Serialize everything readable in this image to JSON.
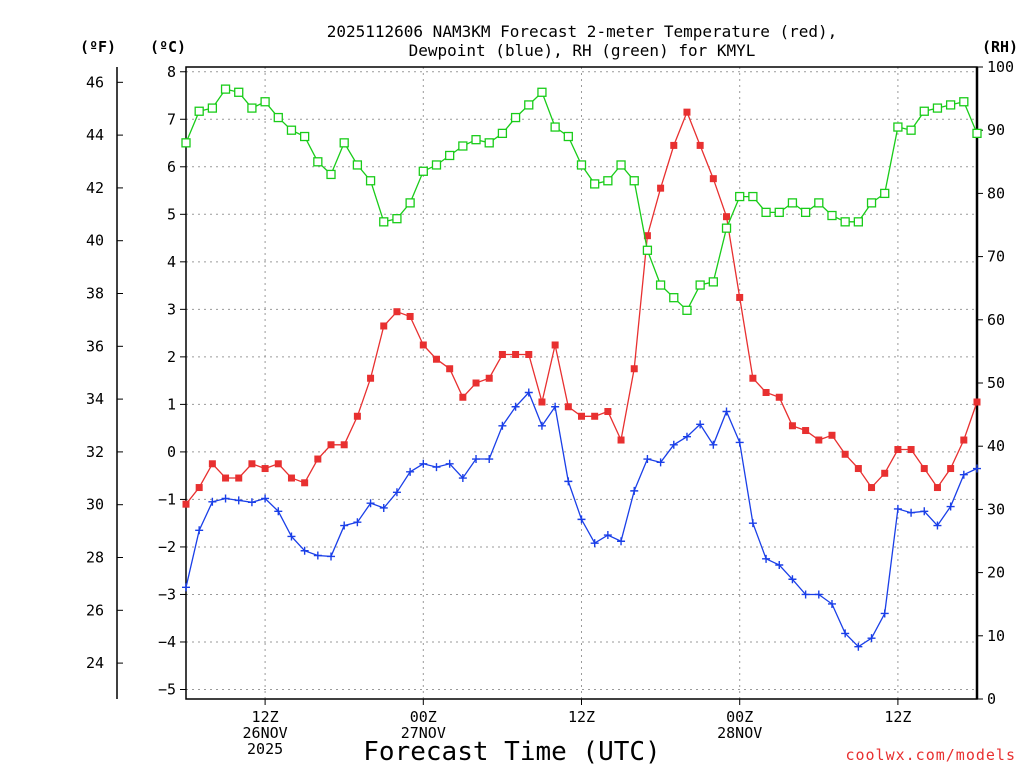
{
  "chart_data": {
    "type": "line",
    "title": [
      "2025112606 NAM3KM Forecast 2-meter Temperature (red),",
      "Dewpoint (blue), RH (green) for KMYL"
    ],
    "xlabel": "Forecast Time (UTC)",
    "credit": "coolwx.com/models",
    "unit_labels": {
      "fahrenheit": "(ºF)",
      "celsius": "(ºC)",
      "rh": "(RH)"
    },
    "x_range_hours": [
      0,
      60
    ],
    "x_ticks": [
      {
        "hour": 6,
        "lines": [
          "12Z",
          "26NOV",
          "2025"
        ]
      },
      {
        "hour": 18,
        "lines": [
          "00Z",
          "27NOV"
        ]
      },
      {
        "hour": 30,
        "lines": [
          "12Z"
        ]
      },
      {
        "hour": 42,
        "lines": [
          "00Z",
          "28NOV"
        ]
      },
      {
        "hour": 54,
        "lines": [
          "12Z"
        ]
      }
    ],
    "y_left_celsius": {
      "range": [
        -5.2,
        8.1
      ],
      "ticks": [
        -5,
        -4,
        -3,
        -2,
        -1,
        0,
        1,
        2,
        3,
        4,
        5,
        6,
        7,
        8
      ]
    },
    "y_left_fahrenheit": {
      "ticks": [
        24,
        26,
        28,
        30,
        32,
        34,
        36,
        38,
        40,
        42,
        44,
        46
      ]
    },
    "y_right_rh": {
      "range": [
        0,
        100
      ],
      "ticks": [
        0,
        10,
        20,
        30,
        40,
        50,
        60,
        70,
        80,
        90,
        100
      ]
    },
    "series": [
      {
        "name": "2-meter Temperature",
        "axis": "celsius",
        "color": "#e83030",
        "marker": "filled-square",
        "values": [
          -1.1,
          -0.75,
          -0.25,
          -0.55,
          -0.55,
          -0.25,
          -0.35,
          -0.25,
          -0.55,
          -0.65,
          -0.15,
          0.15,
          0.15,
          0.75,
          1.55,
          2.65,
          2.95,
          2.85,
          2.25,
          1.95,
          1.75,
          1.15,
          1.45,
          1.55,
          2.05,
          2.05,
          2.05,
          1.05,
          2.25,
          0.95,
          0.75,
          0.75,
          0.85,
          0.25,
          1.75,
          4.55,
          5.55,
          6.45,
          7.15,
          6.45,
          5.75,
          4.95,
          3.25,
          1.55,
          1.25,
          1.15,
          0.55,
          0.45,
          0.25,
          0.35,
          -0.05,
          -0.35,
          -0.75,
          -0.45,
          0.05,
          0.05,
          -0.35,
          -0.75,
          -0.35,
          0.25,
          1.05
        ]
      },
      {
        "name": "Dewpoint",
        "axis": "celsius",
        "color": "#1a3fe8",
        "marker": "plus",
        "values": [
          -2.85,
          -1.65,
          -1.05,
          -0.98,
          -1.02,
          -1.06,
          -0.98,
          -1.25,
          -1.78,
          -2.08,
          -2.18,
          -2.2,
          -1.55,
          -1.48,
          -1.08,
          -1.18,
          -0.85,
          -0.42,
          -0.25,
          -0.32,
          -0.25,
          -0.55,
          -0.15,
          -0.15,
          0.55,
          0.95,
          1.25,
          0.55,
          0.95,
          -0.62,
          -1.42,
          -1.92,
          -1.75,
          -1.88,
          -0.82,
          -0.15,
          -0.22,
          0.15,
          0.32,
          0.58,
          0.15,
          0.85,
          0.2,
          -1.5,
          -2.25,
          -2.38,
          -2.68,
          -3.0,
          -3.0,
          -3.2,
          -3.82,
          -4.1,
          -3.92,
          -3.4,
          -1.2,
          -1.28,
          -1.25,
          -1.55,
          -1.15,
          -0.48,
          -0.35
        ]
      },
      {
        "name": "RH",
        "axis": "rh",
        "color": "#19cc19",
        "marker": "open-square",
        "values": [
          88,
          93,
          93.5,
          96.5,
          96,
          93.5,
          94.5,
          92,
          90,
          89,
          85,
          83,
          88,
          84.5,
          82,
          75.5,
          76,
          78.5,
          83.5,
          84.5,
          86,
          87.5,
          88.5,
          88,
          89.5,
          92,
          94,
          96,
          90.5,
          89,
          84.5,
          81.5,
          82,
          84.5,
          82,
          71,
          65.5,
          63.5,
          61.5,
          65.5,
          66,
          74.5,
          79.5,
          79.5,
          77,
          77,
          78.5,
          77,
          78.5,
          76.5,
          75.5,
          75.5,
          78.5,
          80,
          90.5,
          90,
          93,
          93.5,
          94,
          94.5,
          89.5
        ]
      }
    ]
  }
}
